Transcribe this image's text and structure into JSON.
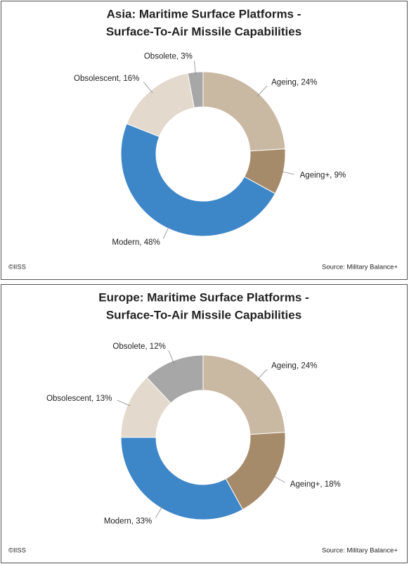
{
  "chart_data": [
    {
      "type": "donut",
      "title": [
        "Asia: Maritime Surface Platforms -",
        "Surface-To-Air Missile Capabilities"
      ],
      "categories": [
        "Ageing",
        "Ageing+",
        "Modern",
        "Obsolescent",
        "Obsolete"
      ],
      "values": [
        24,
        9,
        48,
        16,
        3
      ],
      "value_labels": [
        "24%",
        "9%",
        "48%",
        "16%",
        "3%"
      ],
      "colors": [
        "#c9b8a2",
        "#a68b6b",
        "#3d86c8",
        "#e3d9cc",
        "#a7a7a7"
      ],
      "copyright": "©IISS",
      "source": "Source: Military Balance+"
    },
    {
      "type": "donut",
      "title": [
        "Europe: Maritime Surface Platforms -",
        "Surface-To-Air Missile Capabilities"
      ],
      "categories": [
        "Ageing",
        "Ageing+",
        "Modern",
        "Obsolescent",
        "Obsolete"
      ],
      "values": [
        24,
        18,
        33,
        13,
        12
      ],
      "value_labels": [
        "24%",
        "18%",
        "33%",
        "13%",
        "12%"
      ],
      "colors": [
        "#c9b8a2",
        "#a68b6b",
        "#3d86c8",
        "#e3d9cc",
        "#a7a7a7"
      ],
      "copyright": "©IISS",
      "source": "Source: Military Balance+"
    }
  ]
}
